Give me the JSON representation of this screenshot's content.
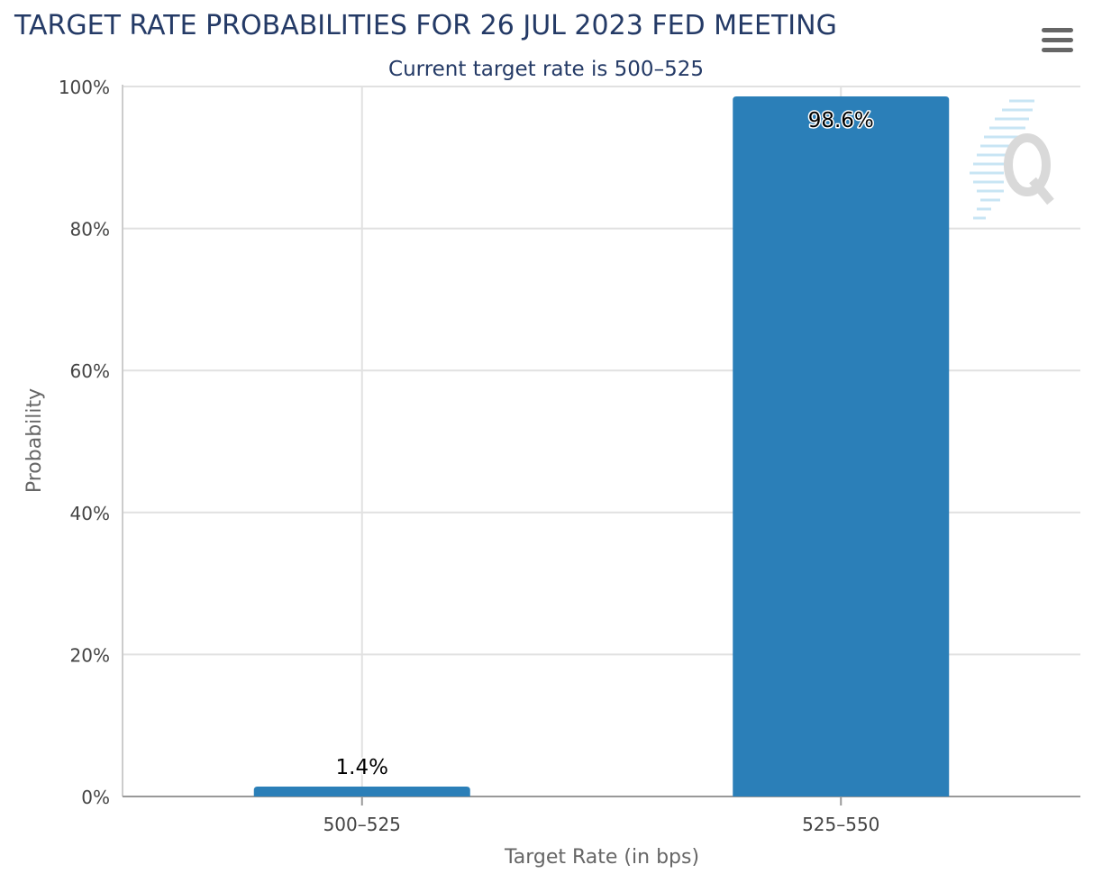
{
  "menu": {
    "icon": "hamburger-menu-icon"
  },
  "watermark": {
    "icon": "q-logo-watermark-icon"
  },
  "colors": {
    "bar": "#2b7fb8",
    "title": "#243a66",
    "grid": "#e1e1e1",
    "axis_line": "#999999",
    "watermark": "#bdd9ea"
  },
  "chart_data": {
    "type": "bar",
    "title": "TARGET RATE PROBABILITIES FOR 26 JUL 2023 FED MEETING",
    "subtitle": "Current target rate is 500–525",
    "xlabel": "Target Rate (in bps)",
    "ylabel": "Probability",
    "categories": [
      "500–525",
      "525–550"
    ],
    "values": [
      1.4,
      98.6
    ],
    "data_labels": [
      "1.4%",
      "98.6%"
    ],
    "ylim": [
      0,
      100
    ],
    "yticks": [
      0,
      20,
      40,
      60,
      80,
      100
    ],
    "ytick_labels": [
      "0%",
      "20%",
      "40%",
      "60%",
      "80%",
      "100%"
    ],
    "grid": true,
    "legend": "none"
  }
}
